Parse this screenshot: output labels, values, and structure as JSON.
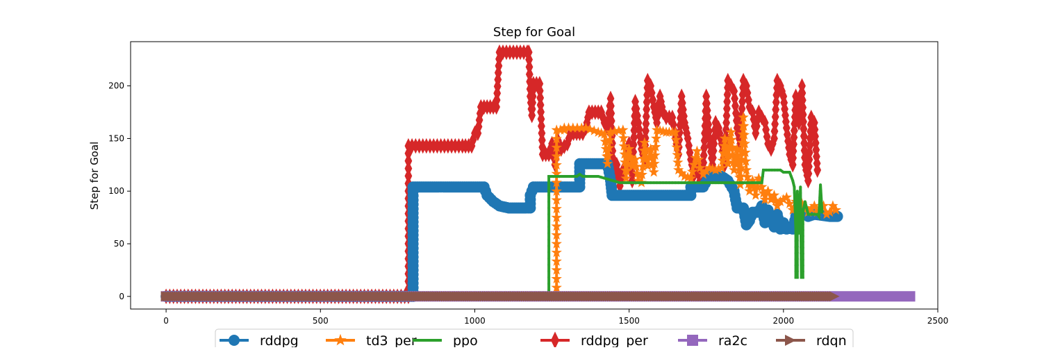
{
  "chart_data": {
    "type": "line",
    "title": "Step for Goal",
    "xlabel": "",
    "ylabel": "Step for Goal",
    "xlim": [
      -115,
      2500
    ],
    "ylim": [
      -12,
      242
    ],
    "xticks": [
      0,
      500,
      1000,
      1500,
      2000,
      2500
    ],
    "yticks": [
      0,
      50,
      100,
      150,
      200
    ],
    "grid": false,
    "legend_position": "bottom-center",
    "series": [
      {
        "name": "rddpg",
        "color": "#1f77b4",
        "marker": "circle",
        "points": [
          [
            0,
            0
          ],
          [
            800,
            0
          ],
          [
            800,
            104
          ],
          [
            1030,
            104
          ],
          [
            1040,
            96
          ],
          [
            1060,
            90
          ],
          [
            1080,
            86
          ],
          [
            1110,
            84
          ],
          [
            1160,
            84
          ],
          [
            1180,
            84
          ],
          [
            1180,
            96
          ],
          [
            1190,
            104
          ],
          [
            1290,
            104
          ],
          [
            1300,
            104
          ],
          [
            1340,
            104
          ],
          [
            1340,
            126
          ],
          [
            1430,
            126
          ],
          [
            1440,
            110
          ],
          [
            1445,
            96
          ],
          [
            1550,
            96
          ],
          [
            1590,
            96
          ],
          [
            1700,
            96
          ],
          [
            1700,
            104
          ],
          [
            1740,
            104
          ],
          [
            1760,
            114
          ],
          [
            1800,
            114
          ],
          [
            1820,
            110
          ],
          [
            1840,
            100
          ],
          [
            1850,
            84
          ],
          [
            1870,
            84
          ],
          [
            1880,
            68
          ],
          [
            1890,
            72
          ],
          [
            1900,
            80
          ],
          [
            1920,
            80
          ],
          [
            1930,
            86
          ],
          [
            1940,
            70
          ],
          [
            1950,
            82
          ],
          [
            1960,
            72
          ],
          [
            1970,
            66
          ],
          [
            1980,
            78
          ],
          [
            1990,
            64
          ],
          [
            2000,
            70
          ],
          [
            2010,
            64
          ],
          [
            2020,
            66
          ],
          [
            2030,
            64
          ],
          [
            2040,
            76
          ],
          [
            2060,
            82
          ],
          [
            2080,
            76
          ],
          [
            2100,
            78
          ],
          [
            2150,
            76
          ],
          [
            2175,
            76
          ]
        ]
      },
      {
        "name": "td3_per",
        "color": "#ff7f0e",
        "marker": "star",
        "points": [
          [
            0,
            0
          ],
          [
            1265,
            0
          ],
          [
            1265,
            158
          ],
          [
            1290,
            158
          ],
          [
            1290,
            160
          ],
          [
            1360,
            160
          ],
          [
            1400,
            156
          ],
          [
            1420,
            154
          ],
          [
            1430,
            126
          ],
          [
            1440,
            156
          ],
          [
            1480,
            158
          ],
          [
            1490,
            112
          ],
          [
            1500,
            140
          ],
          [
            1510,
            124
          ],
          [
            1520,
            130
          ],
          [
            1530,
            110
          ],
          [
            1540,
            108
          ],
          [
            1550,
            146
          ],
          [
            1560,
            124
          ],
          [
            1570,
            140
          ],
          [
            1580,
            118
          ],
          [
            1590,
            158
          ],
          [
            1620,
            156
          ],
          [
            1650,
            156
          ],
          [
            1660,
            120
          ],
          [
            1680,
            114
          ],
          [
            1700,
            112
          ],
          [
            1720,
            138
          ],
          [
            1730,
            122
          ],
          [
            1740,
            116
          ],
          [
            1760,
            122
          ],
          [
            1780,
            120
          ],
          [
            1800,
            122
          ],
          [
            1810,
            150
          ],
          [
            1820,
            126
          ],
          [
            1830,
            156
          ],
          [
            1840,
            120
          ],
          [
            1850,
            140
          ],
          [
            1860,
            106
          ],
          [
            1870,
            170
          ],
          [
            1880,
            120
          ],
          [
            1890,
            100
          ],
          [
            1900,
            110
          ],
          [
            1910,
            96
          ],
          [
            1920,
            112
          ],
          [
            1930,
            104
          ],
          [
            1940,
            92
          ],
          [
            1950,
            100
          ],
          [
            1960,
            92
          ],
          [
            1970,
            96
          ],
          [
            1980,
            86
          ],
          [
            1990,
            90
          ],
          [
            2000,
            92
          ],
          [
            2010,
            94
          ],
          [
            2020,
            88
          ],
          [
            2030,
            82
          ],
          [
            2040,
            90
          ],
          [
            2060,
            88
          ],
          [
            2080,
            80
          ],
          [
            2100,
            86
          ],
          [
            2110,
            80
          ],
          [
            2120,
            84
          ],
          [
            2130,
            86
          ],
          [
            2140,
            78
          ],
          [
            2150,
            80
          ],
          [
            2160,
            86
          ],
          [
            2170,
            82
          ]
        ]
      },
      {
        "name": "ppo",
        "color": "#2ca02c",
        "marker": "point",
        "points": [
          [
            0,
            0
          ],
          [
            1240,
            0
          ],
          [
            1240,
            114
          ],
          [
            1330,
            114
          ],
          [
            1340,
            116
          ],
          [
            1350,
            114
          ],
          [
            1400,
            114
          ],
          [
            1470,
            108
          ],
          [
            1500,
            108
          ],
          [
            1560,
            108
          ],
          [
            1600,
            108
          ],
          [
            1650,
            108
          ],
          [
            1800,
            108
          ],
          [
            1900,
            108
          ],
          [
            1930,
            108
          ],
          [
            1935,
            120
          ],
          [
            1990,
            120
          ],
          [
            2000,
            118
          ],
          [
            2020,
            118
          ],
          [
            2030,
            110
          ],
          [
            2035,
            104
          ],
          [
            2040,
            64
          ],
          [
            2040,
            18
          ],
          [
            2045,
            18
          ],
          [
            2045,
            100
          ],
          [
            2050,
            60
          ],
          [
            2055,
            104
          ],
          [
            2058,
            18
          ],
          [
            2063,
            18
          ],
          [
            2063,
            80
          ],
          [
            2070,
            90
          ],
          [
            2080,
            78
          ],
          [
            2100,
            78
          ],
          [
            2110,
            78
          ],
          [
            2115,
            76
          ],
          [
            2120,
            106
          ],
          [
            2125,
            80
          ]
        ]
      },
      {
        "name": "rddpg_per",
        "color": "#d62728",
        "marker": "thin_diamond",
        "points": [
          [
            0,
            0
          ],
          [
            785,
            0
          ],
          [
            785,
            143
          ],
          [
            960,
            143
          ],
          [
            990,
            143
          ],
          [
            1000,
            155
          ],
          [
            1010,
            155
          ],
          [
            1020,
            180
          ],
          [
            1070,
            180
          ],
          [
            1080,
            232
          ],
          [
            1170,
            232
          ],
          [
            1175,
            232
          ],
          [
            1180,
            190
          ],
          [
            1185,
            172
          ],
          [
            1190,
            202
          ],
          [
            1210,
            202
          ],
          [
            1220,
            135
          ],
          [
            1240,
            135
          ],
          [
            1250,
            145
          ],
          [
            1260,
            125
          ],
          [
            1270,
            148
          ],
          [
            1280,
            140
          ],
          [
            1300,
            145
          ],
          [
            1310,
            155
          ],
          [
            1350,
            155
          ],
          [
            1360,
            160
          ],
          [
            1370,
            175
          ],
          [
            1410,
            175
          ],
          [
            1420,
            165
          ],
          [
            1430,
            160
          ],
          [
            1440,
            188
          ],
          [
            1450,
            110
          ],
          [
            1460,
            125
          ],
          [
            1470,
            105
          ],
          [
            1480,
            120
          ],
          [
            1490,
            125
          ],
          [
            1500,
            145
          ],
          [
            1510,
            110
          ],
          [
            1520,
            185
          ],
          [
            1530,
            165
          ],
          [
            1540,
            140
          ],
          [
            1550,
            130
          ],
          [
            1560,
            205
          ],
          [
            1570,
            200
          ],
          [
            1580,
            180
          ],
          [
            1590,
            165
          ],
          [
            1600,
            190
          ],
          [
            1610,
            175
          ],
          [
            1620,
            170
          ],
          [
            1640,
            170
          ],
          [
            1650,
            150
          ],
          [
            1660,
            135
          ],
          [
            1670,
            190
          ],
          [
            1680,
            165
          ],
          [
            1690,
            150
          ],
          [
            1700,
            130
          ],
          [
            1710,
            115
          ],
          [
            1720,
            125
          ],
          [
            1730,
            110
          ],
          [
            1740,
            120
          ],
          [
            1750,
            190
          ],
          [
            1760,
            150
          ],
          [
            1770,
            125
          ],
          [
            1780,
            165
          ],
          [
            1790,
            160
          ],
          [
            1800,
            145
          ],
          [
            1810,
            125
          ],
          [
            1820,
            205
          ],
          [
            1830,
            200
          ],
          [
            1840,
            195
          ],
          [
            1850,
            160
          ],
          [
            1860,
            145
          ],
          [
            1870,
            205
          ],
          [
            1880,
            200
          ],
          [
            1890,
            180
          ],
          [
            1900,
            175
          ],
          [
            1910,
            155
          ],
          [
            1920,
            175
          ],
          [
            1930,
            170
          ],
          [
            1940,
            165
          ],
          [
            1950,
            145
          ],
          [
            1960,
            140
          ],
          [
            1970,
            150
          ],
          [
            1980,
            205
          ],
          [
            1990,
            200
          ],
          [
            2000,
            190
          ],
          [
            2010,
            160
          ],
          [
            2020,
            135
          ],
          [
            2030,
            125
          ],
          [
            2040,
            190
          ],
          [
            2050,
            165
          ],
          [
            2060,
            200
          ],
          [
            2070,
            125
          ],
          [
            2080,
            110
          ],
          [
            2090,
            170
          ],
          [
            2100,
            165
          ],
          [
            2110,
            120
          ]
        ]
      },
      {
        "name": "ra2c",
        "color": "#9467bd",
        "marker": "square",
        "points": [
          [
            0,
            0
          ],
          [
            2410,
            0
          ]
        ]
      },
      {
        "name": "rdqn",
        "color": "#8c564b",
        "marker": "triangle_right",
        "points": [
          [
            0,
            0
          ],
          [
            2165,
            0
          ]
        ]
      }
    ]
  }
}
